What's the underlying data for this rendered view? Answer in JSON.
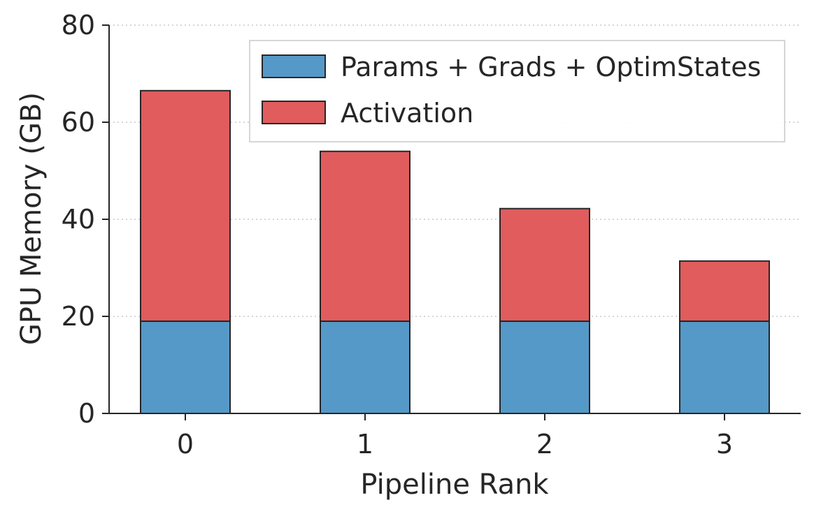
{
  "chart_data": {
    "type": "bar",
    "stacked": true,
    "title": "",
    "xlabel": "Pipeline Rank",
    "ylabel": "GPU Memory (GB)",
    "categories": [
      "0",
      "1",
      "2",
      "3"
    ],
    "series": [
      {
        "name": "Params + Grads + OptimStates",
        "color": "#5599c8",
        "values": [
          19,
          19,
          19,
          19
        ]
      },
      {
        "name": "Activation",
        "color": "#e05c5d",
        "values": [
          47.5,
          35,
          23.2,
          12.4
        ]
      }
    ],
    "ylim": [
      0,
      80
    ],
    "yticks": [
      "0",
      "20",
      "40",
      "60",
      "80"
    ],
    "grid": "horizontal dotted",
    "legend_position": "top-right"
  }
}
